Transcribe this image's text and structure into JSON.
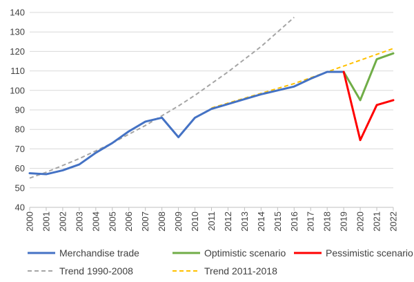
{
  "chart_data": {
    "type": "line",
    "title": "",
    "xlabel": "",
    "ylabel": "",
    "x": [
      2000,
      2001,
      2002,
      2003,
      2004,
      2005,
      2006,
      2007,
      2008,
      2009,
      2010,
      2011,
      2012,
      2013,
      2014,
      2015,
      2016,
      2017,
      2018,
      2019,
      2020,
      2021,
      2022
    ],
    "ylim": [
      40,
      140
    ],
    "yticks": [
      40,
      50,
      60,
      70,
      80,
      90,
      100,
      110,
      120,
      130,
      140
    ],
    "grid": true,
    "legend_position": "bottom",
    "series": [
      {
        "name": "Merchandise trade",
        "color": "#4472C4",
        "style": "solid",
        "points": [
          [
            2000,
            57.5
          ],
          [
            2001,
            57
          ],
          [
            2002,
            59
          ],
          [
            2003,
            62
          ],
          [
            2004,
            68
          ],
          [
            2005,
            73
          ],
          [
            2006,
            79
          ],
          [
            2007,
            84
          ],
          [
            2008,
            86
          ],
          [
            2009,
            76
          ],
          [
            2010,
            86
          ],
          [
            2011,
            90.5
          ],
          [
            2012,
            93
          ],
          [
            2013,
            95.5
          ],
          [
            2014,
            98
          ],
          [
            2015,
            100
          ],
          [
            2016,
            102
          ],
          [
            2017,
            106
          ],
          [
            2018,
            109.5
          ],
          [
            2019,
            109.5
          ]
        ]
      },
      {
        "name": "Optimistic scenario",
        "color": "#70AD47",
        "style": "solid",
        "points": [
          [
            2019,
            109.5
          ],
          [
            2020,
            95
          ],
          [
            2021,
            116
          ],
          [
            2022,
            119
          ]
        ]
      },
      {
        "name": "Pessimistic scenario",
        "color": "#FF0000",
        "style": "solid",
        "points": [
          [
            2019,
            109.5
          ],
          [
            2020,
            74.5
          ],
          [
            2021,
            92.5
          ],
          [
            2022,
            95
          ]
        ]
      },
      {
        "name": "Trend 1990-2008",
        "color": "#A5A5A5",
        "style": "dashed",
        "points": [
          [
            2000,
            55
          ],
          [
            2001,
            58
          ],
          [
            2002,
            61.5
          ],
          [
            2003,
            65
          ],
          [
            2004,
            69
          ],
          [
            2005,
            73
          ],
          [
            2006,
            77.5
          ],
          [
            2007,
            82
          ],
          [
            2008,
            87
          ],
          [
            2009,
            92
          ],
          [
            2010,
            97.5
          ],
          [
            2011,
            103.5
          ],
          [
            2012,
            109.5
          ],
          [
            2013,
            116
          ],
          [
            2014,
            122.5
          ],
          [
            2015,
            130
          ],
          [
            2016,
            137.5
          ]
        ]
      },
      {
        "name": "Trend 2011-2018",
        "color": "#FFC000",
        "style": "dashed",
        "points": [
          [
            2011,
            91
          ],
          [
            2012,
            93.5
          ],
          [
            2013,
            96
          ],
          [
            2014,
            98.5
          ],
          [
            2015,
            101
          ],
          [
            2016,
            103.5
          ],
          [
            2017,
            106.5
          ],
          [
            2018,
            109.5
          ],
          [
            2019,
            112.5
          ],
          [
            2020,
            115.5
          ],
          [
            2021,
            118.5
          ],
          [
            2022,
            121.5
          ]
        ]
      }
    ]
  }
}
